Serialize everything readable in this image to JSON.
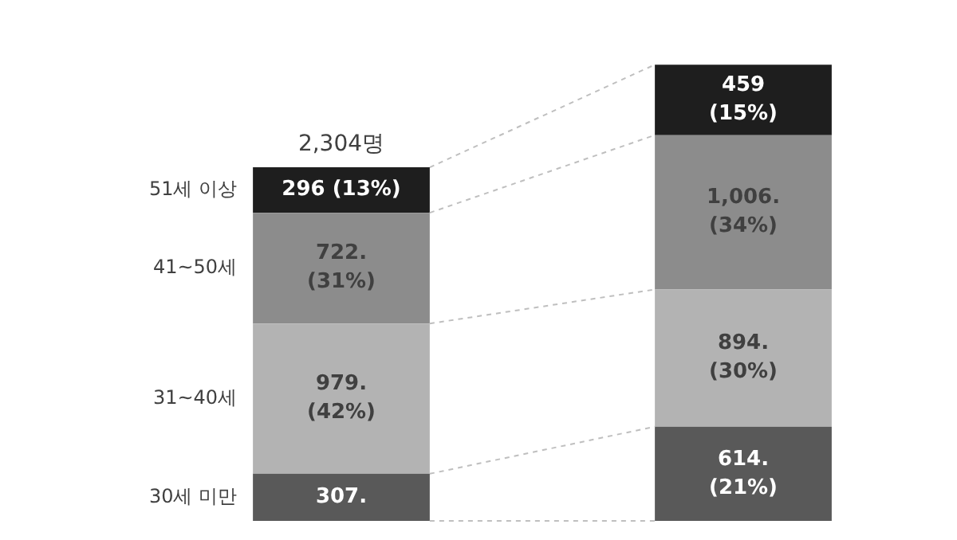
{
  "chart_data": {
    "type": "bar",
    "stacked": true,
    "categories": [
      null,
      null
    ],
    "series": [
      {
        "name": "30세 미만",
        "color": "#595959",
        "values": [
          307,
          614
        ],
        "value_labels": [
          "307.",
          "614. (21%)"
        ]
      },
      {
        "name": "31~40세",
        "color": "#b3b3b3",
        "values": [
          979,
          894
        ],
        "value_labels": [
          "979. (42%)",
          "894. (30%)"
        ]
      },
      {
        "name": "41~50세",
        "color": "#8c8c8c",
        "values": [
          722,
          1006
        ],
        "value_labels": [
          "722. (31%)",
          "1,006. (34%)"
        ]
      },
      {
        "name": "51세 이상",
        "color": "#1e1e1e",
        "values": [
          296,
          459
        ],
        "value_labels": [
          "296 (13%)",
          "459 (15%)"
        ]
      }
    ],
    "totals": [
      "2,304명",
      null
    ],
    "legend": false
  }
}
